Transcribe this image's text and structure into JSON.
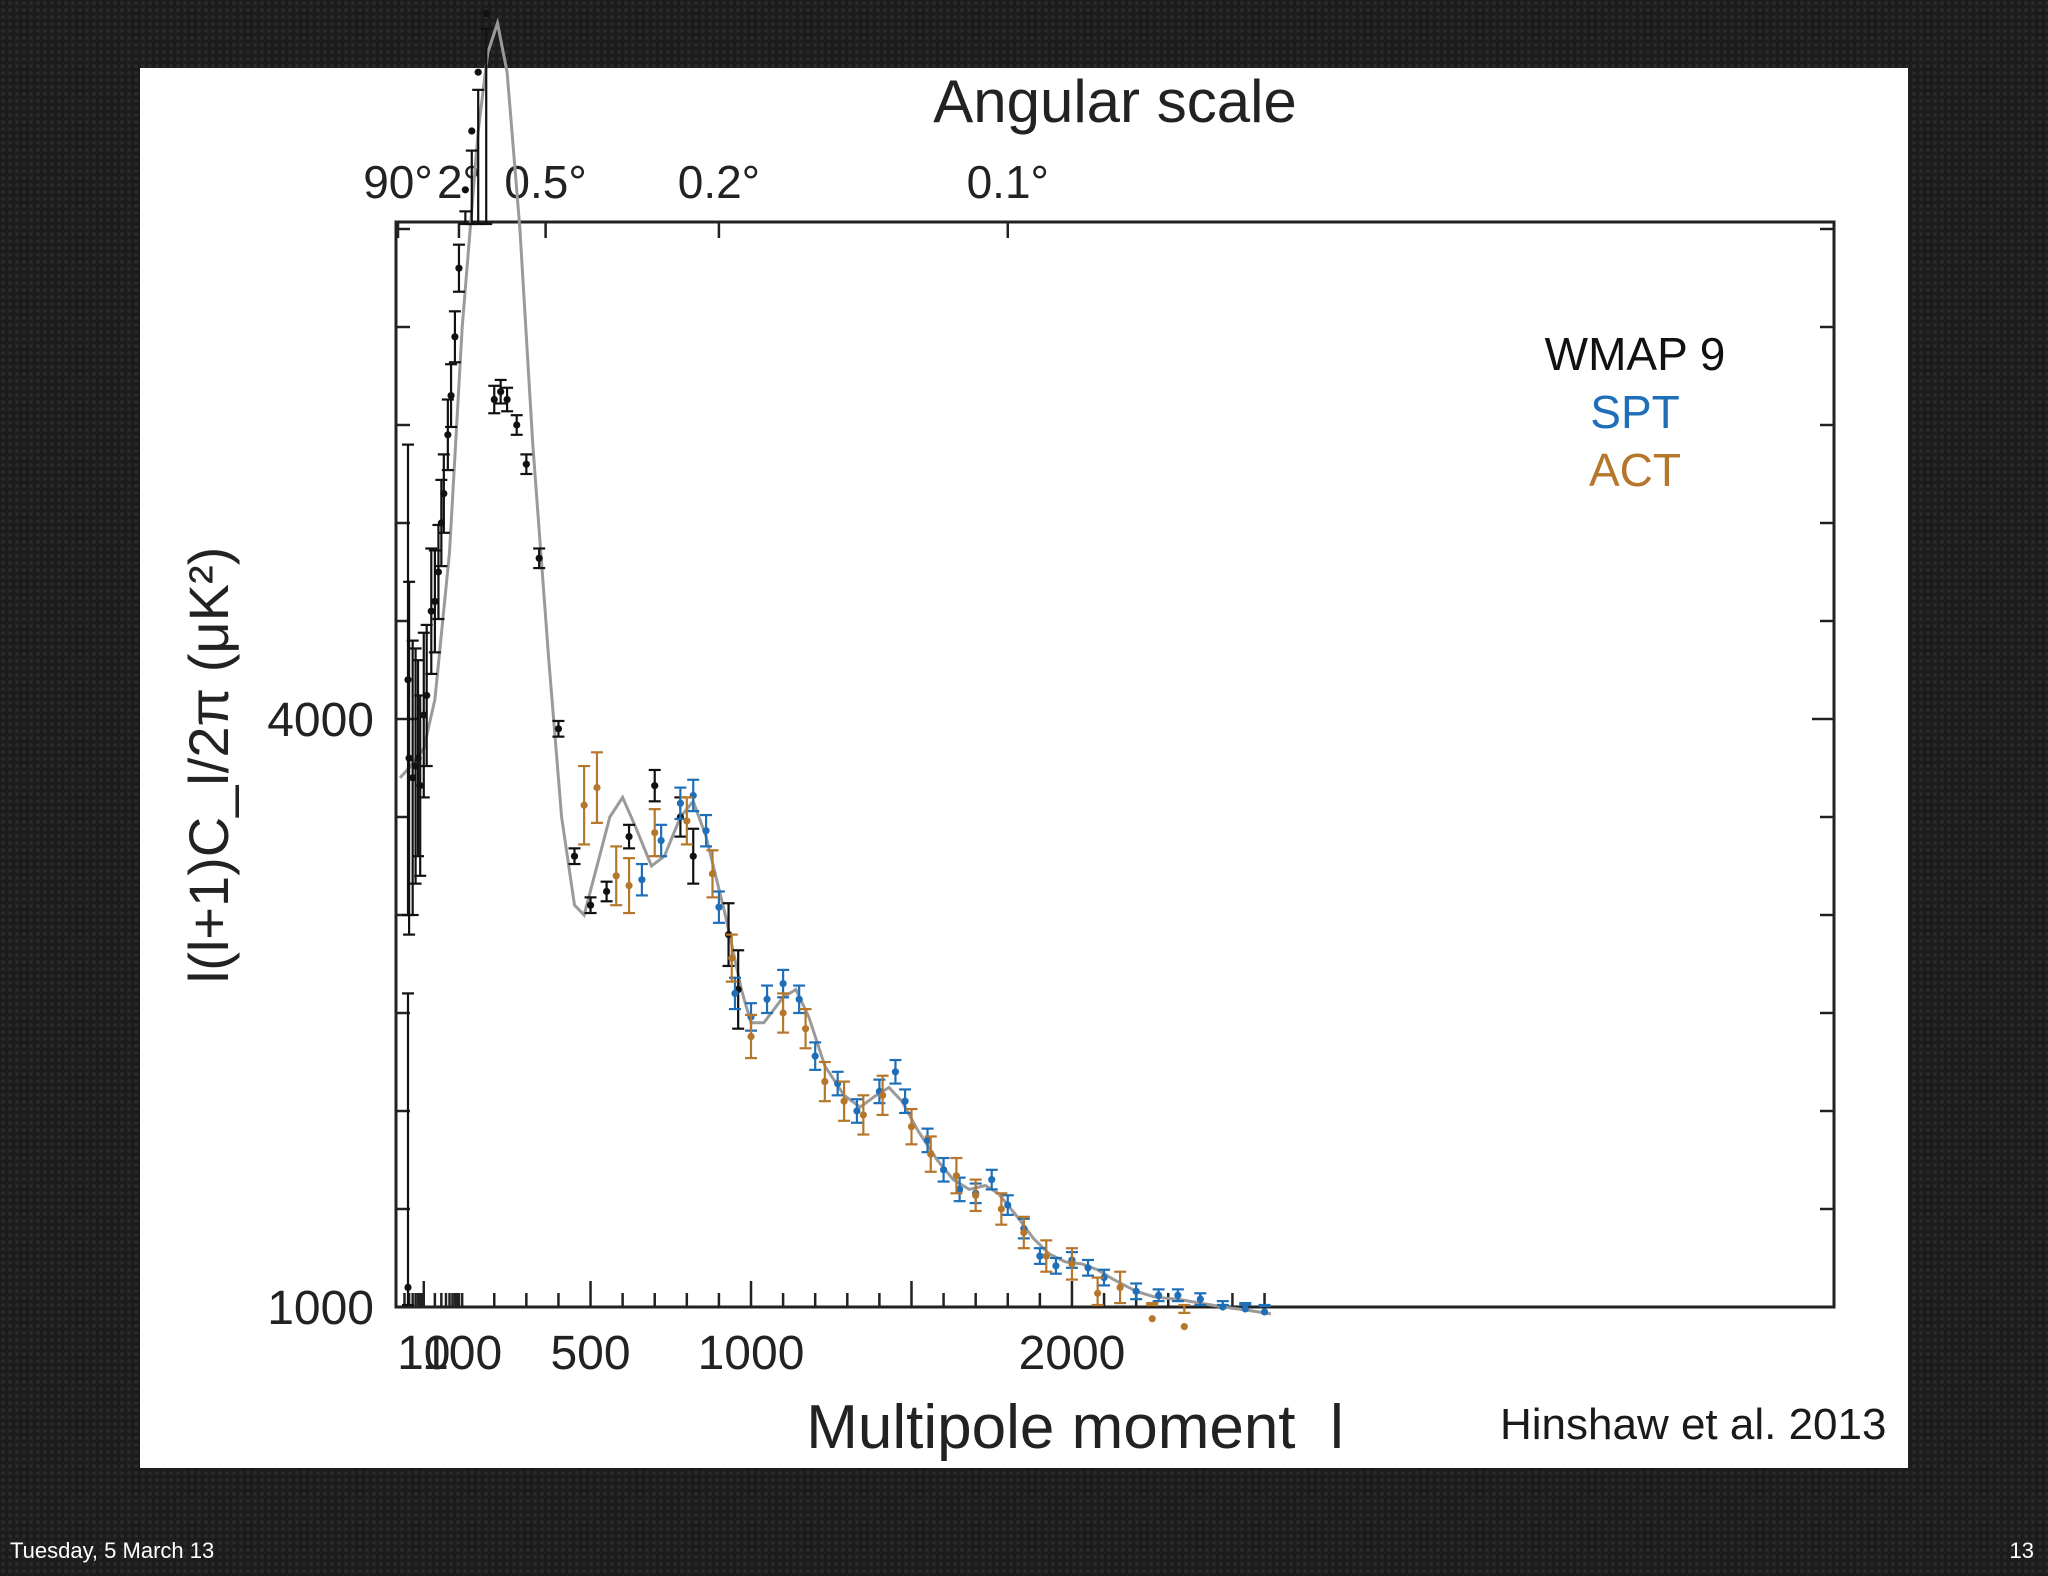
{
  "footer": {
    "date": "Tuesday, 5 March 13",
    "page_number": "13"
  },
  "citation": "Hinshaw et al. 2013",
  "chart_data": {
    "type": "scatter",
    "title": "",
    "top_axis_label": "Angular scale",
    "top_ticks": [
      {
        "label": "90°",
        "l": 2
      },
      {
        "label": "2°",
        "l": 90
      },
      {
        "label": "0.5°",
        "l": 360
      },
      {
        "label": "0.2°",
        "l": 900
      },
      {
        "label": "0.1°",
        "l": 1800
      }
    ],
    "xlabel": "Multipole moment  l",
    "ylabel": "l(l+1)C_l/2π (μK²)",
    "x_tick_labels": [
      {
        "label": "10",
        "l": 10
      },
      {
        "label": "100",
        "l": 100
      },
      {
        "label": "500",
        "l": 500
      },
      {
        "label": "1000",
        "l": 1000
      },
      {
        "label": "2000",
        "l": 2000
      }
    ],
    "y_tick_labels": [
      {
        "label": "4000",
        "value": 4000
      },
      {
        "label": "1000",
        "value": 1000
      }
    ],
    "colors": {
      "WMAP 9": "#111111",
      "SPT": "#1f6fb8",
      "ACT": "#b5772c",
      "model": "#9a9a9a"
    },
    "legend": {
      "position": "top-right",
      "entries": [
        "WMAP 9",
        "SPT",
        "ACT"
      ]
    },
    "series": [
      {
        "name": "WMAP 9",
        "points": [
          [
            2,
            1100,
            1500
          ],
          [
            3,
            4200,
            1200
          ],
          [
            4,
            3800,
            900
          ],
          [
            5,
            3700,
            700
          ],
          [
            6,
            3760,
            600
          ],
          [
            7,
            3800,
            500
          ],
          [
            8,
            3660,
            460
          ],
          [
            10,
            4020,
            420
          ],
          [
            12,
            4120,
            360
          ],
          [
            16,
            4550,
            320
          ],
          [
            20,
            4600,
            260
          ],
          [
            25,
            4750,
            240
          ],
          [
            30,
            5000,
            220
          ],
          [
            35,
            5150,
            200
          ],
          [
            45,
            5450,
            180
          ],
          [
            55,
            5650,
            160
          ],
          [
            70,
            5950,
            130
          ],
          [
            90,
            6300,
            120
          ],
          [
            110,
            6700,
            110
          ],
          [
            130,
            7000,
            100
          ],
          [
            150,
            7300,
            90
          ],
          [
            175,
            7600,
            80
          ],
          [
            200,
            5630,
            70
          ],
          [
            220,
            5670,
            60
          ],
          [
            240,
            5630,
            60
          ],
          [
            270,
            5500,
            50
          ],
          [
            300,
            5300,
            50
          ],
          [
            340,
            4820,
            50
          ],
          [
            400,
            3950,
            40
          ],
          [
            450,
            3300,
            40
          ],
          [
            500,
            3050,
            40
          ],
          [
            550,
            3120,
            50
          ],
          [
            620,
            3400,
            60
          ],
          [
            700,
            3660,
            80
          ],
          [
            780,
            3500,
            100
          ],
          [
            820,
            3300,
            140
          ],
          [
            930,
            2900,
            160
          ],
          [
            960,
            2620,
            200
          ]
        ]
      },
      {
        "name": "SPT",
        "points": [
          [
            660,
            3180,
            80
          ],
          [
            720,
            3380,
            80
          ],
          [
            780,
            3570,
            80
          ],
          [
            820,
            3610,
            80
          ],
          [
            860,
            3430,
            80
          ],
          [
            900,
            3040,
            80
          ],
          [
            950,
            2600,
            80
          ],
          [
            1000,
            2480,
            70
          ],
          [
            1050,
            2570,
            70
          ],
          [
            1100,
            2650,
            70
          ],
          [
            1150,
            2570,
            70
          ],
          [
            1200,
            2280,
            70
          ],
          [
            1270,
            2140,
            60
          ],
          [
            1330,
            2000,
            60
          ],
          [
            1400,
            2100,
            60
          ],
          [
            1450,
            2200,
            60
          ],
          [
            1480,
            2050,
            60
          ],
          [
            1550,
            1850,
            60
          ],
          [
            1600,
            1700,
            60
          ],
          [
            1650,
            1600,
            60
          ],
          [
            1700,
            1580,
            50
          ],
          [
            1750,
            1650,
            50
          ],
          [
            1800,
            1520,
            50
          ],
          [
            1850,
            1400,
            50
          ],
          [
            1900,
            1260,
            40
          ],
          [
            1950,
            1210,
            40
          ],
          [
            2000,
            1240,
            40
          ],
          [
            2050,
            1200,
            40
          ],
          [
            2100,
            1150,
            40
          ],
          [
            2200,
            1080,
            40
          ],
          [
            2270,
            1060,
            30
          ],
          [
            2330,
            1060,
            30
          ],
          [
            2400,
            1040,
            30
          ],
          [
            2470,
            1000,
            30
          ],
          [
            2540,
            990,
            30
          ],
          [
            2600,
            975,
            30
          ]
        ]
      },
      {
        "name": "ACT",
        "points": [
          [
            480,
            3560,
            200
          ],
          [
            520,
            3650,
            180
          ],
          [
            580,
            3200,
            150
          ],
          [
            620,
            3150,
            140
          ],
          [
            700,
            3420,
            120
          ],
          [
            800,
            3480,
            120
          ],
          [
            880,
            3210,
            120
          ],
          [
            940,
            2780,
            120
          ],
          [
            1000,
            2380,
            110
          ],
          [
            1100,
            2500,
            100
          ],
          [
            1170,
            2420,
            100
          ],
          [
            1230,
            2150,
            100
          ],
          [
            1290,
            2050,
            100
          ],
          [
            1350,
            1980,
            100
          ],
          [
            1410,
            2080,
            100
          ],
          [
            1500,
            1920,
            90
          ],
          [
            1560,
            1780,
            90
          ],
          [
            1640,
            1670,
            90
          ],
          [
            1700,
            1570,
            80
          ],
          [
            1780,
            1500,
            80
          ],
          [
            1850,
            1380,
            80
          ],
          [
            1920,
            1260,
            80
          ],
          [
            2000,
            1220,
            80
          ],
          [
            2080,
            1070,
            80
          ],
          [
            2150,
            1100,
            80
          ],
          [
            2250,
            940,
            80
          ],
          [
            2350,
            900,
            70
          ]
        ]
      }
    ],
    "model_curve": [
      [
        2,
        3700
      ],
      [
        4,
        3750
      ],
      [
        10,
        3850
      ],
      [
        20,
        4100
      ],
      [
        50,
        4850
      ],
      [
        100,
        6000
      ],
      [
        150,
        7000
      ],
      [
        180,
        7400
      ],
      [
        210,
        7550
      ],
      [
        240,
        7300
      ],
      [
        280,
        6500
      ],
      [
        320,
        5400
      ],
      [
        370,
        4300
      ],
      [
        410,
        3500
      ],
      [
        450,
        3050
      ],
      [
        480,
        3000
      ],
      [
        520,
        3250
      ],
      [
        560,
        3500
      ],
      [
        600,
        3600
      ],
      [
        640,
        3450
      ],
      [
        690,
        3250
      ],
      [
        730,
        3300
      ],
      [
        780,
        3500
      ],
      [
        820,
        3580
      ],
      [
        860,
        3400
      ],
      [
        920,
        3000
      ],
      [
        970,
        2620
      ],
      [
        1000,
        2450
      ],
      [
        1040,
        2450
      ],
      [
        1100,
        2580
      ],
      [
        1140,
        2620
      ],
      [
        1180,
        2480
      ],
      [
        1230,
        2230
      ],
      [
        1290,
        2080
      ],
      [
        1340,
        2020
      ],
      [
        1390,
        2080
      ],
      [
        1430,
        2120
      ],
      [
        1470,
        2050
      ],
      [
        1520,
        1900
      ],
      [
        1580,
        1750
      ],
      [
        1630,
        1650
      ],
      [
        1680,
        1600
      ],
      [
        1730,
        1620
      ],
      [
        1770,
        1580
      ],
      [
        1830,
        1460
      ],
      [
        1880,
        1350
      ],
      [
        1930,
        1270
      ],
      [
        1980,
        1230
      ],
      [
        2030,
        1220
      ],
      [
        2080,
        1190
      ],
      [
        2130,
        1140
      ],
      [
        2200,
        1080
      ],
      [
        2260,
        1050
      ],
      [
        2330,
        1040
      ],
      [
        2400,
        1020
      ],
      [
        2470,
        1000
      ],
      [
        2540,
        985
      ],
      [
        2620,
        965
      ]
    ]
  }
}
